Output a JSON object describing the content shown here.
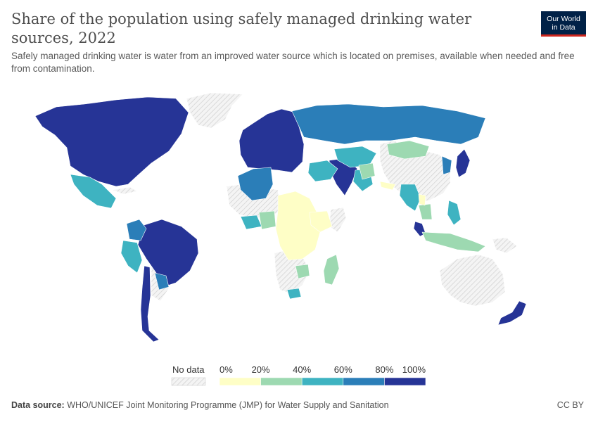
{
  "header": {
    "title": "Share of the population using safely managed drinking water sources, 2022",
    "subtitle": "Safely managed drinking water is water from an improved water source which is located on premises, available when needed and free from contamination."
  },
  "logo": {
    "line1": "Our World",
    "line2": "in Data"
  },
  "legend": {
    "no_data_label": "No data",
    "tick_labels": [
      "0%",
      "20%",
      "40%",
      "60%",
      "80%",
      "100%"
    ],
    "bins": [
      {
        "from": 0,
        "to": 20,
        "color": "#fefec6"
      },
      {
        "from": 20,
        "to": 40,
        "color": "#9dd9b1"
      },
      {
        "from": 40,
        "to": 60,
        "color": "#3eb3c1"
      },
      {
        "from": 60,
        "to": 80,
        "color": "#2b7eb8"
      },
      {
        "from": 80,
        "to": 100,
        "color": "#263496"
      }
    ],
    "no_data_color": "#e8e8e8"
  },
  "footer": {
    "source_label": "Data source:",
    "source_text": "WHO/UNICEF Joint Monitoring Programme (JMP) for Water Supply and Sanitation",
    "license": "CC BY"
  }
}
